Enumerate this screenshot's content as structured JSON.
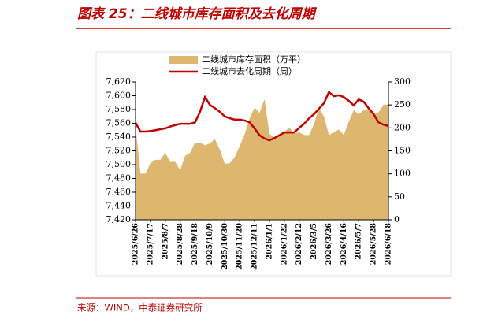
{
  "chart_data": {
    "type": "area-line",
    "title": "图表 25：二线城市库存面积及去化周期",
    "source": "来源：WIND，中泰证券研究所",
    "categories": [
      "2025/6/26",
      null,
      null,
      "2025/7/17",
      null,
      null,
      "2025/8/7",
      null,
      null,
      "2025/8/28",
      null,
      null,
      "2025/9/18",
      null,
      null,
      "2025/10/9",
      null,
      null,
      "2025/10/30",
      null,
      null,
      "2025/11/20",
      null,
      null,
      "2025/12/11",
      null,
      null,
      "2026/1/1",
      null,
      null,
      "2026/1/22",
      null,
      null,
      "2026/2/12",
      null,
      null,
      "2026/3/5",
      null,
      null,
      "2026/3/26",
      null,
      null,
      "2026/4/16",
      null,
      null,
      "2026/5/7",
      null,
      null,
      "2026/5/28",
      null,
      null,
      "2026/6/18"
    ],
    "series": [
      {
        "name": "二线城市库存面积（万平）",
        "kind": "area",
        "color": "#ddb76f",
        "values": [
          7556,
          7487,
          7487,
          7502,
          7507,
          7507,
          7517,
          7504,
          7504,
          7492,
          7513,
          7517,
          7532,
          7532,
          7528,
          7531,
          7537,
          7522,
          7501,
          7502,
          7511,
          7527,
          7544,
          7567,
          7583,
          7575,
          7595,
          7545,
          7539,
          7543,
          7547,
          7554,
          7545,
          7547,
          7543,
          7543,
          7559,
          7582,
          7570,
          7543,
          7547,
          7551,
          7543,
          7562,
          7579,
          7573,
          7579,
          7581,
          7573,
          7576,
          7587,
          7587
        ]
      },
      {
        "name": "二线城市去化周期（周）",
        "kind": "line",
        "axis": "y2",
        "color": "#c00000",
        "values": [
          211,
          192,
          192,
          193,
          195,
          197,
          199,
          203,
          206,
          209,
          209,
          209,
          212,
          235,
          267,
          250,
          243,
          235,
          225,
          221,
          218,
          218,
          216,
          212,
          199,
          184,
          177,
          173,
          178,
          184,
          190,
          190,
          190,
          200,
          209,
          221,
          230,
          242,
          254,
          278,
          269,
          271,
          267,
          259,
          249,
          262,
          257,
          243,
          230,
          212,
          207,
          204
        ]
      }
    ],
    "ylim": [
      7420,
      7620
    ],
    "yticks": [
      {
        "value": 7420,
        "label": "7,420"
      },
      {
        "value": 7440,
        "label": "7,440"
      },
      {
        "value": 7460,
        "label": "7,460"
      },
      {
        "value": 7480,
        "label": "7,480"
      },
      {
        "value": 7500,
        "label": "7,500"
      },
      {
        "value": 7520,
        "label": "7,520"
      },
      {
        "value": 7540,
        "label": "7,540"
      },
      {
        "value": 7560,
        "label": "7,560"
      },
      {
        "value": 7580,
        "label": "7,580"
      },
      {
        "value": 7600,
        "label": "7,600"
      },
      {
        "value": 7620,
        "label": "7,620"
      }
    ],
    "y2lim": [
      0,
      300
    ],
    "y2ticks": [
      0,
      50,
      100,
      150,
      200,
      250,
      300
    ]
  }
}
